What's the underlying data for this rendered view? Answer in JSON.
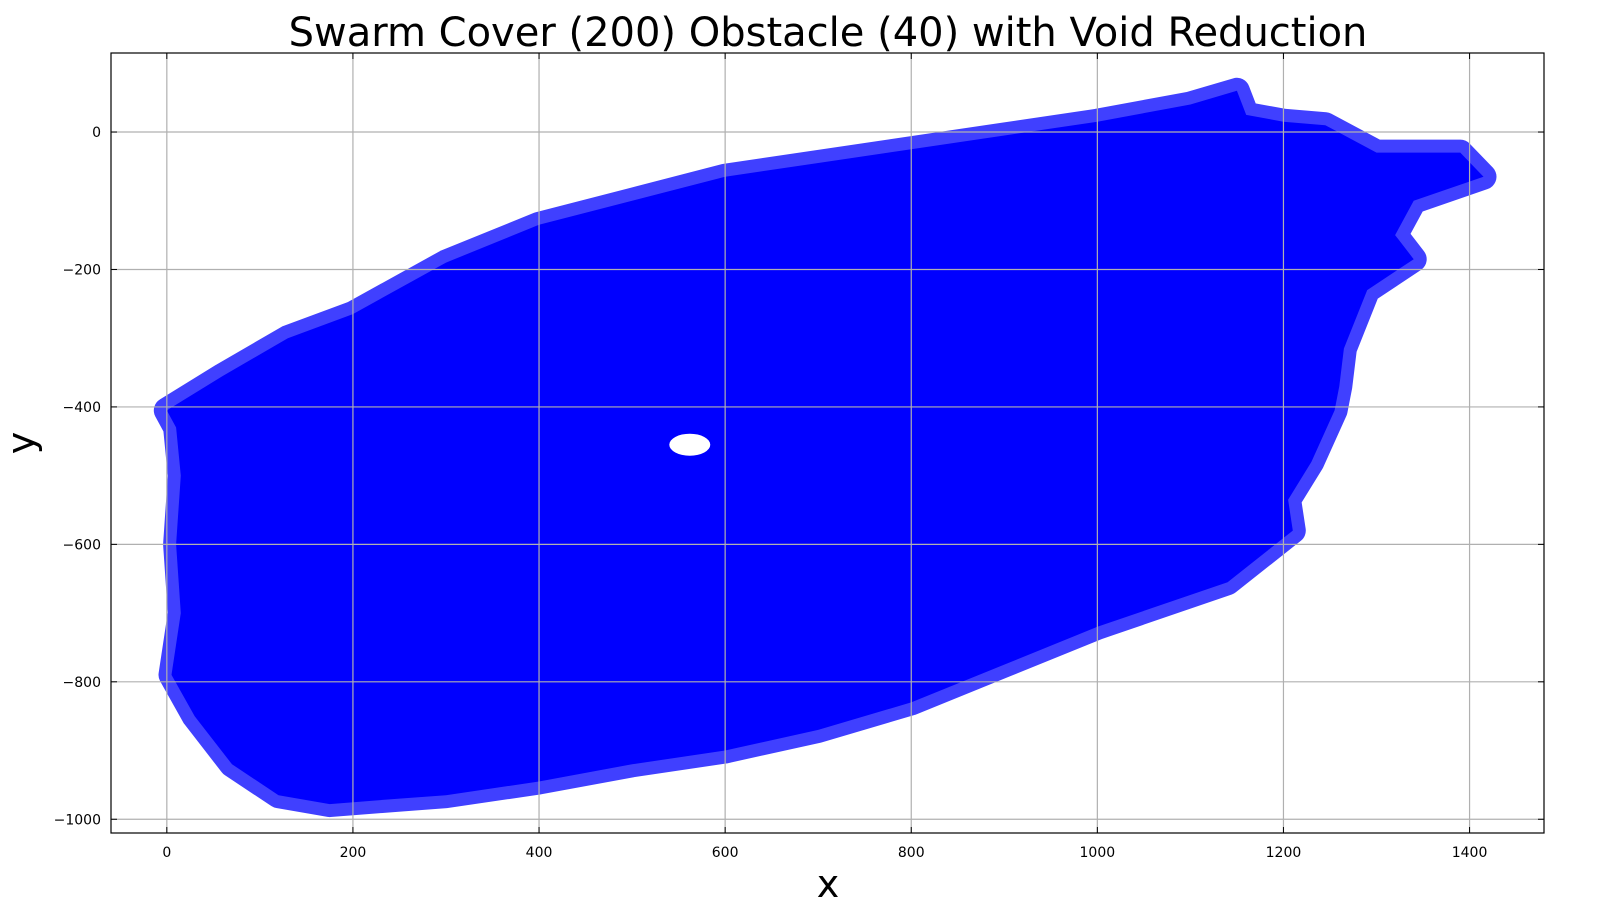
{
  "chart_data": {
    "type": "scatter",
    "title": "Swarm Cover (200) Obstacle (40) with Void Reduction",
    "xlabel": "x",
    "ylabel": "y",
    "xlim": [
      -60,
      1480
    ],
    "ylim": [
      -1020,
      115
    ],
    "xticks": [
      0,
      200,
      400,
      600,
      800,
      1000,
      1200,
      1400
    ],
    "yticks": [
      0,
      -200,
      -400,
      -600,
      -800,
      -1000
    ],
    "xtick_labels": [
      "0",
      "200",
      "400",
      "600",
      "800",
      "1000",
      "1200",
      "1400"
    ],
    "ytick_labels": [
      "0",
      "−200",
      "−400",
      "−600",
      "−800",
      "−1000"
    ],
    "grid": true,
    "marker_color": "#0000ff",
    "covered_region_boundary": [
      [
        0,
        -405
      ],
      [
        60,
        -355
      ],
      [
        130,
        -300
      ],
      [
        200,
        -265
      ],
      [
        300,
        -190
      ],
      [
        400,
        -135
      ],
      [
        500,
        -100
      ],
      [
        600,
        -65
      ],
      [
        700,
        -45
      ],
      [
        800,
        -25
      ],
      [
        900,
        -5
      ],
      [
        1000,
        15
      ],
      [
        1100,
        40
      ],
      [
        1150,
        60
      ],
      [
        1160,
        25
      ],
      [
        1200,
        15
      ],
      [
        1245,
        10
      ],
      [
        1300,
        -30
      ],
      [
        1390,
        -30
      ],
      [
        1415,
        -65
      ],
      [
        1340,
        -100
      ],
      [
        1320,
        -150
      ],
      [
        1340,
        -185
      ],
      [
        1290,
        -230
      ],
      [
        1265,
        -315
      ],
      [
        1260,
        -370
      ],
      [
        1255,
        -405
      ],
      [
        1230,
        -480
      ],
      [
        1205,
        -535
      ],
      [
        1210,
        -580
      ],
      [
        1140,
        -655
      ],
      [
        1000,
        -720
      ],
      [
        900,
        -775
      ],
      [
        800,
        -830
      ],
      [
        700,
        -870
      ],
      [
        600,
        -900
      ],
      [
        500,
        -920
      ],
      [
        400,
        -945
      ],
      [
        300,
        -965
      ],
      [
        250,
        -970
      ],
      [
        175,
        -978
      ],
      [
        120,
        -965
      ],
      [
        70,
        -920
      ],
      [
        30,
        -850
      ],
      [
        5,
        -790
      ],
      [
        15,
        -700
      ],
      [
        10,
        -600
      ],
      [
        15,
        -500
      ],
      [
        10,
        -430
      ]
    ],
    "void_regions": [
      {
        "center": [
          562,
          -455
        ],
        "rx": 22,
        "ry": 16
      }
    ]
  }
}
